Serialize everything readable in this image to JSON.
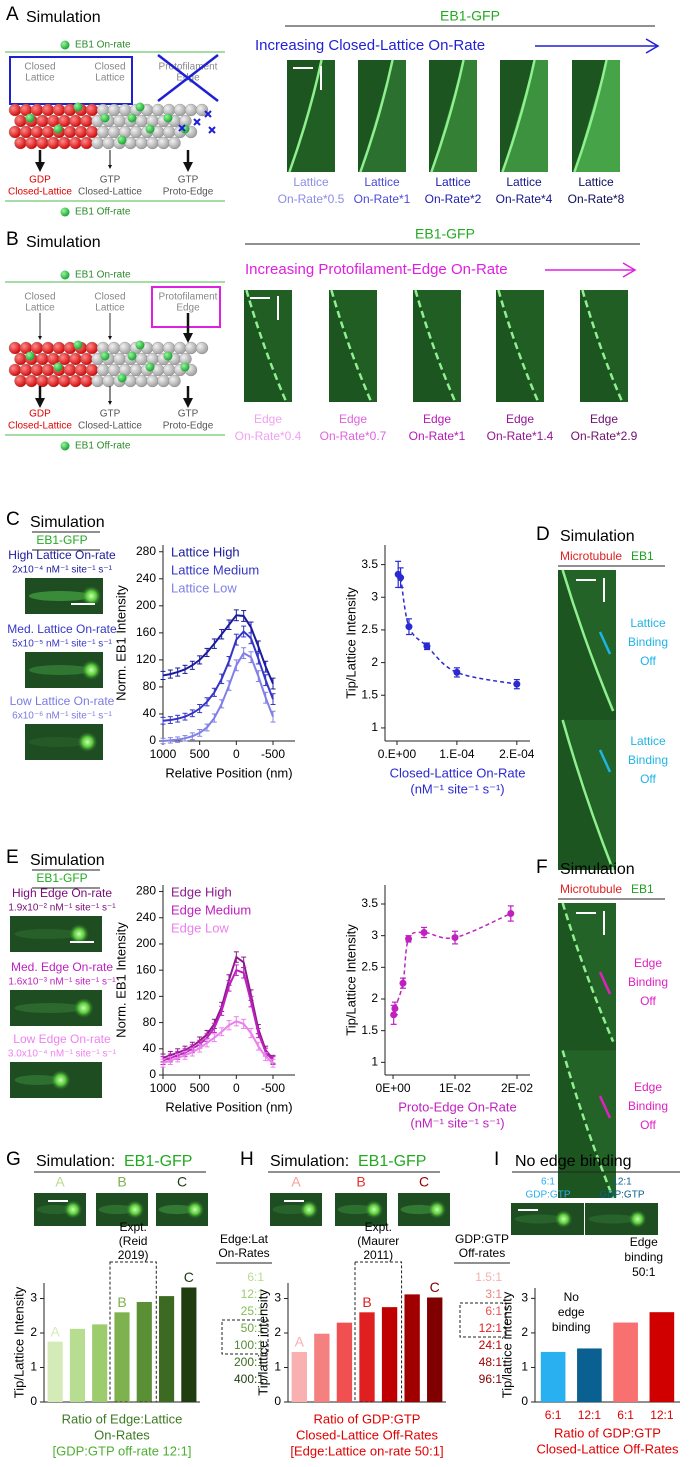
{
  "panel_a": {
    "letter": "A",
    "title": "Simulation",
    "header": "EB1-GFP",
    "trend": "Increasing Closed-Lattice On-Rate",
    "trend_color": "#1f1fd6",
    "diagram": {
      "on_rate": "EB1 On-rate",
      "off_rate": "EB1 Off-rate",
      "top": [
        [
          "Closed",
          "Lattice"
        ],
        [
          "Closed",
          "Lattice"
        ],
        [
          "Protofilament",
          "Edge"
        ]
      ],
      "bottom": [
        [
          "GDP",
          "Closed-Lattice"
        ],
        [
          "GTP",
          "Closed-Lattice"
        ],
        [
          "GTP",
          "Proto-Edge"
        ]
      ]
    },
    "kymograph_labels": [
      [
        "Lattice",
        "On-Rate*0.5"
      ],
      [
        "Lattice",
        "On-Rate*1"
      ],
      [
        "Lattice",
        "On-Rate*2"
      ],
      [
        "Lattice",
        "On-Rate*4"
      ],
      [
        "Lattice",
        "On-Rate*8"
      ]
    ],
    "label_colors": [
      "#8c8ce6",
      "#4a4ad8",
      "#1c1cb0",
      "#14148a",
      "#0c0c5a"
    ]
  },
  "panel_b": {
    "letter": "B",
    "title": "Simulation",
    "header": "EB1-GFP",
    "trend": "Increasing Protofilament-Edge On-Rate",
    "trend_color": "#e020e0",
    "diagram": {
      "on_rate": "EB1 On-rate",
      "off_rate": "EB1 Off-rate",
      "top": [
        [
          "Closed",
          "Lattice"
        ],
        [
          "Closed",
          "Lattice"
        ],
        [
          "Protofilament",
          "Edge"
        ]
      ],
      "bottom": [
        [
          "GDP",
          "Closed-Lattice"
        ],
        [
          "GTP",
          "Closed-Lattice"
        ],
        [
          "GTP",
          "Proto-Edge"
        ]
      ]
    },
    "kymograph_labels": [
      [
        "Edge",
        "On-Rate*0.4"
      ],
      [
        "Edge",
        "On-Rate*0.7"
      ],
      [
        "Edge",
        "On-Rate*1"
      ],
      [
        "Edge",
        "On-Rate*1.4"
      ],
      [
        "Edge",
        "On-Rate*2.9"
      ]
    ],
    "label_colors": [
      "#f2a0f2",
      "#e060e0",
      "#b818b8",
      "#941494",
      "#6e106e"
    ]
  },
  "panel_c": {
    "letter": "C",
    "title": "Simulation",
    "header": "EB1-GFP",
    "images": [
      [
        "High Lattice On-rate",
        "2x10⁻⁴ nM⁻¹ site⁻¹ s⁻¹"
      ],
      [
        "Med. Lattice On-rate",
        "5x10⁻⁵ nM⁻¹ site⁻¹ s⁻¹"
      ],
      [
        "Low Lattice On-rate",
        "6x10⁻⁶ nM⁻¹ site⁻¹ s⁻¹"
      ]
    ],
    "label_colors": [
      "#1a1a9c",
      "#3535c8",
      "#7a7ae4"
    ]
  },
  "panel_d": {
    "letter": "D",
    "title": "Simulation",
    "channels": [
      "Microtubule",
      "EB1"
    ],
    "channel_colors": [
      "#e02020",
      "#20a020"
    ],
    "annotations": [
      [
        "Lattice",
        "Binding",
        "Off"
      ],
      [
        "Lattice",
        "Binding",
        "Off"
      ]
    ],
    "annotation_color": "#1eb4e6"
  },
  "panel_e": {
    "letter": "E",
    "title": "Simulation",
    "header": "EB1-GFP",
    "images": [
      [
        "High Edge On-rate",
        "1.9x10⁻² nM⁻¹ site⁻¹ s⁻¹"
      ],
      [
        "Med. Edge On-rate",
        "1.6x10⁻³ nM⁻¹ site⁻¹ s⁻¹"
      ],
      [
        "Low Edge On-rate",
        "3.0x10⁻⁴ nM⁻¹ site⁻¹ s⁻¹"
      ]
    ],
    "label_colors": [
      "#7a0a7a",
      "#c020c0",
      "#f080f0"
    ]
  },
  "panel_f": {
    "letter": "F",
    "title": "Simulation",
    "channels": [
      "Microtubule",
      "EB1"
    ],
    "channel_colors": [
      "#e02020",
      "#20a020"
    ],
    "annotations": [
      [
        "Edge",
        "Binding",
        "Off"
      ],
      [
        "Edge",
        "Binding",
        "Off"
      ]
    ],
    "annotation_color": "#e020c0"
  },
  "panel_g": {
    "letter": "G",
    "title": "Simulation:",
    "header": "EB1-GFP",
    "images": [
      "A",
      "B",
      "C"
    ],
    "image_colors": [
      "#b7dd90",
      "#7db24f",
      "#1f3d0f"
    ],
    "experiment": [
      "Expt.",
      "(Reid",
      "2019)"
    ],
    "list_title": [
      "Edge:Lat",
      "On-Rates"
    ],
    "list": [
      "6:1",
      "12:1",
      "25:1",
      "50:1",
      "100:1",
      "200:1",
      "400:1"
    ],
    "list_colors": [
      "#b7dd90",
      "#9ccc6e",
      "#86bd58",
      "#6ea544",
      "#558a33",
      "#3d6a22",
      "#1f3d0f"
    ]
  },
  "panel_h": {
    "letter": "H",
    "title": "Simulation:",
    "header": "EB1-GFP",
    "images": [
      "A",
      "B",
      "C"
    ],
    "image_colors": [
      "#f5a0a0",
      "#e83030",
      "#a00000"
    ],
    "experiment": [
      "Expt.",
      "(Maurer",
      "2011)"
    ],
    "list_title": [
      "GDP:GTP",
      "Off-rates"
    ],
    "list": [
      "1.5:1",
      "3:1",
      "6:1",
      "12:1",
      "24:1",
      "48:1",
      "96:1"
    ],
    "list_colors": [
      "#f5b0b0",
      "#f08080",
      "#e85050",
      "#dd2020",
      "#c00000",
      "#a00000",
      "#800000"
    ]
  },
  "panel_i": {
    "letter": "I",
    "title": "No edge binding",
    "images": [
      [
        "6:1",
        "GDP:GTP"
      ],
      [
        "12:1",
        "GDP:GTP"
      ]
    ],
    "image_colors": [
      "#29b0f0",
      "#0a6090"
    ],
    "annotations": [
      [
        "No",
        "edge",
        "binding"
      ],
      [
        "Edge",
        "binding",
        "50:1"
      ]
    ]
  },
  "chart_data": [
    {
      "type": "line",
      "ylabel": "Norm. EB1 Intensity",
      "xlabel": "Relative Position (nm)",
      "x": [
        1000,
        900,
        800,
        700,
        600,
        500,
        400,
        300,
        200,
        100,
        0,
        -100,
        -200,
        -300,
        -400,
        -500
      ],
      "xlim": [
        1000,
        -800
      ],
      "xticks": [
        1000,
        500,
        0,
        -500
      ],
      "ylim": [
        0,
        290
      ],
      "yticks": [
        0,
        40,
        80,
        120,
        160,
        200,
        240,
        280
      ],
      "series": [
        {
          "name": "Lattice High",
          "color": "#1a1a9c",
          "values": [
            97,
            99,
            102,
            106,
            112,
            120,
            131,
            144,
            158,
            172,
            186,
            185,
            168,
            140,
            110,
            85
          ],
          "errors": [
            6,
            6,
            6,
            6,
            6,
            6,
            6,
            7,
            7,
            7,
            8,
            8,
            8,
            8,
            8,
            8
          ]
        },
        {
          "name": "Lattice Medium",
          "color": "#3535c8",
          "values": [
            30,
            31,
            33,
            36,
            41,
            48,
            58,
            72,
            92,
            118,
            150,
            162,
            152,
            122,
            90,
            62
          ],
          "errors": [
            5,
            5,
            5,
            5,
            5,
            6,
            6,
            6,
            7,
            7,
            8,
            8,
            8,
            8,
            8,
            8
          ]
        },
        {
          "name": "Lattice Low",
          "color": "#8080e8",
          "values": [
            0,
            1,
            2,
            4,
            7,
            12,
            20,
            34,
            55,
            82,
            112,
            130,
            124,
            96,
            64,
            36
          ],
          "errors": [
            4,
            4,
            4,
            4,
            5,
            5,
            5,
            6,
            6,
            7,
            8,
            8,
            8,
            8,
            8,
            8
          ]
        }
      ]
    },
    {
      "type": "scatter",
      "ylabel": "Tip/Lattice Intensity",
      "xlabel": [
        "Closed-Lattice On-Rate",
        "(nM⁻¹ site⁻¹ s⁻¹)"
      ],
      "color": "#2a2ad0",
      "x": [
        2e-06,
        6e-06,
        2e-05,
        5e-05,
        0.0001,
        0.0002
      ],
      "values": [
        3.35,
        3.3,
        2.55,
        2.25,
        1.85,
        1.67
      ],
      "errors": [
        0.2,
        0.15,
        0.12,
        0.05,
        0.07,
        0.07
      ],
      "xlim": [
        -2e-05,
        0.000222
      ],
      "xticks": [
        {
          "value": 0,
          "label": "0.E+00"
        },
        {
          "value": 0.0001,
          "label": "1.E-04"
        },
        {
          "value": 0.0002,
          "label": "2.E-04"
        }
      ],
      "ylim": [
        0.8,
        3.8
      ],
      "yticks": [
        1,
        1.5,
        2,
        2.5,
        3,
        3.5
      ]
    },
    {
      "type": "line",
      "ylabel": "Norm. EB1 Intensity",
      "xlabel": "Relative Position (nm)",
      "x": [
        1000,
        900,
        800,
        700,
        600,
        500,
        400,
        300,
        200,
        100,
        0,
        -100,
        -200,
        -300,
        -400,
        -500
      ],
      "xlim": [
        1000,
        -800
      ],
      "xticks": [
        1000,
        500,
        0,
        -500
      ],
      "ylim": [
        0,
        290
      ],
      "yticks": [
        0,
        40,
        80,
        120,
        160,
        200,
        240,
        280
      ],
      "series": [
        {
          "name": "Edge High",
          "color": "#8b1a8b",
          "values": [
            26,
            30,
            34,
            38,
            44,
            52,
            62,
            78,
            104,
            145,
            180,
            172,
            122,
            70,
            38,
            24
          ],
          "errors": [
            6,
            6,
            6,
            6,
            6,
            6,
            6,
            7,
            7,
            8,
            8,
            8,
            8,
            7,
            6,
            6
          ]
        },
        {
          "name": "Edge Medium",
          "color": "#c020c0",
          "values": [
            22,
            26,
            30,
            34,
            40,
            47,
            57,
            72,
            98,
            136,
            160,
            156,
            112,
            64,
            35,
            22
          ],
          "errors": [
            6,
            6,
            6,
            6,
            6,
            6,
            6,
            7,
            7,
            8,
            8,
            8,
            8,
            7,
            6,
            6
          ]
        },
        {
          "name": "Edge Low",
          "color": "#ec80ec",
          "values": [
            18,
            22,
            26,
            30,
            35,
            41,
            49,
            57,
            66,
            76,
            82,
            78,
            64,
            44,
            28,
            18
          ],
          "errors": [
            6,
            6,
            6,
            6,
            6,
            6,
            6,
            6,
            6,
            7,
            7,
            7,
            7,
            6,
            6,
            6
          ]
        }
      ]
    },
    {
      "type": "scatter",
      "ylabel": "Tip/Lattice Intensity",
      "xlabel": [
        "Proto-Edge On-Rate",
        "(nM⁻¹ site⁻¹ s⁻¹)"
      ],
      "color": "#c020c0",
      "x": [
        0.0001,
        0.0003,
        0.0016,
        0.0025,
        0.005,
        0.01,
        0.019
      ],
      "values": [
        1.75,
        1.85,
        2.25,
        2.95,
        3.05,
        2.97,
        3.35
      ],
      "errors": [
        0.15,
        0.1,
        0.08,
        0.05,
        0.08,
        0.1,
        0.12
      ],
      "xlim": [
        -0.0013,
        0.0221
      ],
      "xticks": [
        {
          "value": 0,
          "label": "0E+00"
        },
        {
          "value": 0.01,
          "label": "1E-02"
        },
        {
          "value": 0.02,
          "label": "2E-02"
        }
      ],
      "ylim": [
        0.8,
        3.8
      ],
      "yticks": [
        1,
        1.5,
        2,
        2.5,
        3,
        3.5
      ]
    },
    {
      "type": "bar",
      "ylabel": "Tip/Lattice Intensity",
      "xlabel": [
        "Ratio of Edge:Lattice",
        "On-Rates",
        "[GDP:GTP off-rate 12:1]"
      ],
      "xlabel_colors": [
        "#3d7a22",
        "#3d7a22",
        "#4caf30"
      ],
      "categories": [
        "A",
        null,
        null,
        "B",
        null,
        null,
        "C"
      ],
      "values": [
        1.75,
        2.12,
        2.25,
        2.6,
        2.9,
        3.07,
        3.32
      ],
      "colors": [
        "#d4ebb8",
        "#b7dd90",
        "#9ccc6e",
        "#7db24f",
        "#5a8f35",
        "#3d6a22",
        "#1f3d0f"
      ],
      "ylim": [
        0,
        3.45
      ],
      "yticks": [
        0,
        1,
        2,
        3
      ]
    },
    {
      "type": "bar",
      "ylabel": "Tip/lattice intensity",
      "xlabel": [
        "Ratio of GDP:GTP",
        "Closed-Lattice Off-Rates",
        "[Edge:Lattice on-rate 50:1]"
      ],
      "xlabel_colors": [
        "#e00000",
        "#e00000",
        "#e00000"
      ],
      "categories": [
        "A",
        null,
        null,
        "B",
        null,
        null,
        "C"
      ],
      "values": [
        1.45,
        1.98,
        2.3,
        2.6,
        2.75,
        3.12,
        3.03
      ],
      "colors": [
        "#f8b0b0",
        "#f58080",
        "#f05050",
        "#e02020",
        "#c00000",
        "#a00000",
        "#800000"
      ],
      "ylim": [
        0,
        3.45
      ],
      "yticks": [
        0,
        1,
        2,
        3
      ]
    },
    {
      "type": "bar",
      "ylabel": "Tip/lattice intensity",
      "xlabel": [
        "Ratio of GDP:GTP",
        "Closed-Lattice Off-Rates"
      ],
      "xlabel_colors": [
        "#e00000",
        "#e00000"
      ],
      "categories": [
        "6:1",
        "12:1",
        "6:1",
        "12:1"
      ],
      "values": [
        1.45,
        1.55,
        2.3,
        2.6
      ],
      "colors": [
        "#29b0f0",
        "#0a6090",
        "#f87070",
        "#d00000"
      ],
      "ylim": [
        0,
        3.3
      ],
      "yticks": [
        0,
        1,
        2,
        3
      ]
    }
  ]
}
